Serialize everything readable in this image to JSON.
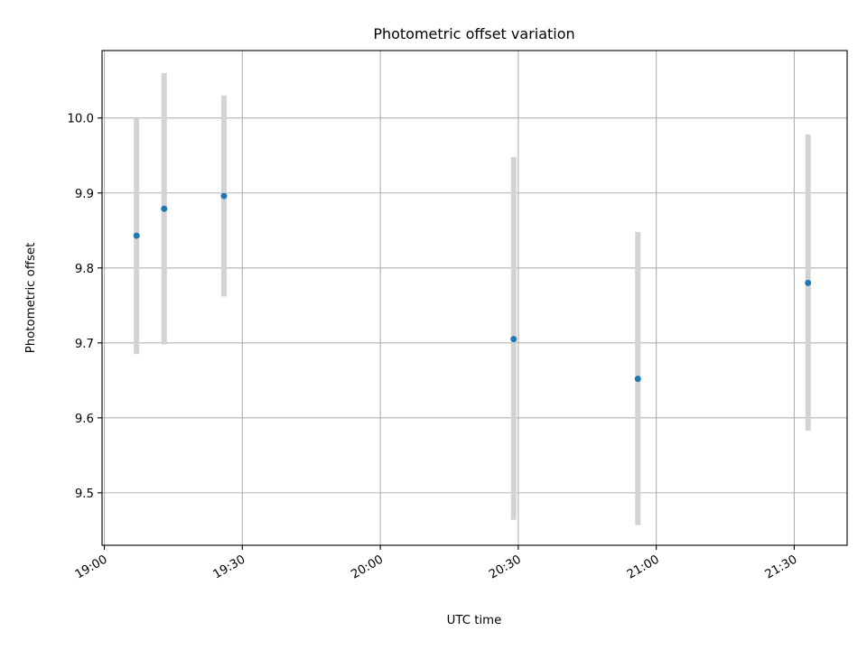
{
  "chart_data": {
    "type": "scatter",
    "title": "Photometric offset variation",
    "xlabel": "UTC time",
    "ylabel": "Photometric offset",
    "x_tick_labels": [
      "19:00",
      "19:30",
      "20:00",
      "20:30",
      "21:00",
      "21:30"
    ],
    "x_tick_minutes": [
      0,
      30,
      60,
      90,
      120,
      150
    ],
    "y_ticks": [
      9.5,
      9.6,
      9.7,
      9.8,
      9.9,
      10.0
    ],
    "y_tick_labels": [
      "9.5",
      "9.6",
      "9.7",
      "9.8",
      "9.9",
      "10.0"
    ],
    "xlim": [
      "18:59:30",
      "21:41:30"
    ],
    "ylim": [
      9.43,
      10.09
    ],
    "grid": true,
    "legend": "none",
    "point_color": "#1f77b4",
    "errorbar_color": "#d3d3d3",
    "points": [
      {
        "x": "19:07",
        "y": 9.843,
        "ylow": 9.685,
        "yhigh": 10.0
      },
      {
        "x": "19:13",
        "y": 9.879,
        "ylow": 9.698,
        "yhigh": 10.06
      },
      {
        "x": "19:26",
        "y": 9.896,
        "ylow": 9.762,
        "yhigh": 10.03
      },
      {
        "x": "20:29",
        "y": 9.705,
        "ylow": 9.464,
        "yhigh": 9.948
      },
      {
        "x": "20:56",
        "y": 9.652,
        "ylow": 9.457,
        "yhigh": 9.848
      },
      {
        "x": "21:33",
        "y": 9.78,
        "ylow": 9.583,
        "yhigh": 9.978
      }
    ]
  }
}
